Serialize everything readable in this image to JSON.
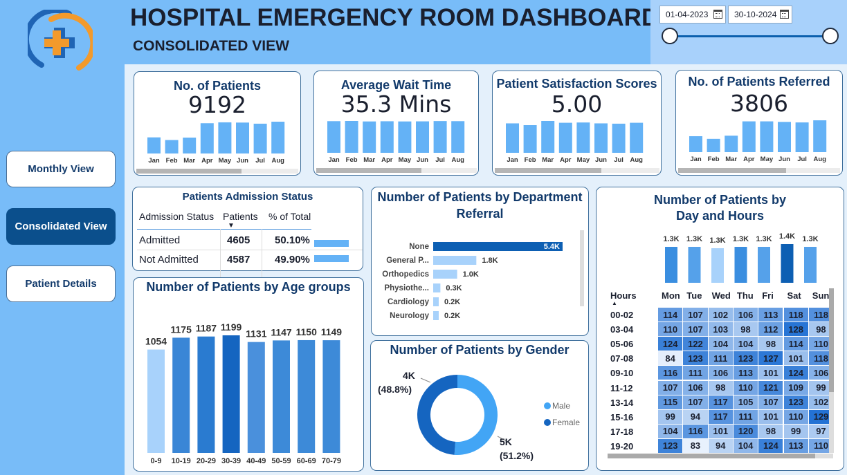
{
  "header": {
    "title": "HOSPITAL EMERGENCY ROOM DASHBOARD",
    "subtitle": "CONSOLIDATED VIEW",
    "date_from": "01-04-2023",
    "date_to": "30-10-2024"
  },
  "nav": [
    {
      "label": "Monthly View",
      "active": false
    },
    {
      "label": "Consolidated View",
      "active": true
    },
    {
      "label": "Patient Details",
      "active": false
    }
  ],
  "colors": {
    "sidebar": "#78bcf8",
    "bar": "#64b2f6",
    "accent_dark": "#0b4f8c",
    "logo_blue": "#1f64b4",
    "logo_orange": "#f39a2b"
  },
  "kpis": [
    {
      "title": "No. of Patients",
      "value": "9192",
      "months": [
        "Jan",
        "Feb",
        "Mar",
        "Apr",
        "May",
        "Jun",
        "Jul",
        "Aug"
      ],
      "values": [
        730,
        610,
        720,
        1370,
        1410,
        1400,
        1350,
        1440
      ]
    },
    {
      "title": "Average Wait Time",
      "value": "35.3 Mins",
      "months": [
        "Jan",
        "Feb",
        "Mar",
        "Apr",
        "May",
        "Jun",
        "Jul",
        "Aug"
      ],
      "values": [
        35.3,
        35.5,
        35.0,
        35.2,
        35.0,
        35.1,
        35.4,
        35.3
      ]
    },
    {
      "title": "Patient Satisfaction Scores",
      "value": "5.00",
      "months": [
        "Jan",
        "Feb",
        "Mar",
        "Apr",
        "May",
        "Jun",
        "Jul",
        "Aug"
      ],
      "values": [
        4.95,
        4.65,
        5.35,
        5.05,
        5.1,
        4.95,
        4.9,
        5.05
      ]
    },
    {
      "title": "No. of Patients Referred",
      "value": "3806",
      "months": [
        "Jan",
        "Feb",
        "Mar",
        "Apr",
        "May",
        "Jun",
        "Jul",
        "Aug"
      ],
      "values": [
        300,
        250,
        310,
        580,
        580,
        570,
        560,
        600
      ]
    }
  ],
  "admission": {
    "title": "Patients Admission Status",
    "headers": [
      "Admission Status",
      "Patients",
      "% of Total"
    ],
    "rows": [
      {
        "status": "Admitted",
        "patients": "4605",
        "pct": "50.10%",
        "pct_value": 50.1
      },
      {
        "status": "Not Admitted",
        "patients": "4587",
        "pct": "49.90%",
        "pct_value": 49.9
      }
    ]
  },
  "department": {
    "title_line1": "Number of Patients by Department",
    "title_line2": "Referral",
    "chart_data": {
      "type": "bar",
      "orientation": "horizontal",
      "categories": [
        "None",
        "General P...",
        "Orthopedics",
        "Physiothe...",
        "Cardiology",
        "Neurology"
      ],
      "values": [
        5400,
        1800,
        1000,
        300,
        200,
        200
      ],
      "labels": [
        "5.4K",
        "1.8K",
        "1.0K",
        "0.3K",
        "0.2K",
        "0.2K"
      ]
    }
  },
  "gender": {
    "title": "Number of Patients by Gender",
    "chart_data": {
      "type": "pie",
      "variant": "donut",
      "categories": [
        "Male",
        "Female"
      ],
      "values": [
        51.2,
        48.8
      ],
      "value_labels": [
        "5K",
        "4K"
      ],
      "pct_labels": [
        "(51.2%)",
        "(48.8%)"
      ],
      "colors": [
        "#42a5f5",
        "#1565c0"
      ]
    }
  },
  "age": {
    "title": "Number of Patients by Age groups",
    "chart_data": {
      "type": "bar",
      "categories": [
        "0-9",
        "10-19",
        "20-29",
        "30-39",
        "40-49",
        "50-59",
        "60-69",
        "70-79"
      ],
      "values": [
        1054,
        1175,
        1187,
        1199,
        1131,
        1147,
        1150,
        1149
      ],
      "colors": [
        "#a8d2fb",
        "#3a86d6",
        "#2a7bd0",
        "#1565c0",
        "#4a90dc",
        "#3d8ad8",
        "#3d8ad8",
        "#3d8ad8"
      ]
    }
  },
  "day_hours": {
    "title_line1": "Number of Patients by",
    "title_line2": "Day and Hours",
    "chart_data": [
      {
        "type": "bar",
        "categories": [
          "Mon",
          "Tue",
          "Wed",
          "Thu",
          "Fri",
          "Sat",
          "Sun"
        ],
        "values": [
          1300,
          1300,
          1250,
          1300,
          1300,
          1400,
          1300
        ],
        "labels": [
          "1.3K",
          "1.3K",
          "1.3K",
          "1.3K",
          "1.3K",
          "1.4K",
          "1.3K"
        ],
        "colors": [
          "#3a8ee0",
          "#55a1ea",
          "#a8d2fb",
          "#3a8ee0",
          "#55a1ea",
          "#0d5fb3",
          "#55a1ea"
        ]
      },
      {
        "type": "heatmap",
        "row_header": "Hours",
        "columns": [
          "Mon",
          "Tue",
          "Wed",
          "Thu",
          "Fri",
          "Sat",
          "Sun"
        ],
        "rows": [
          "00-02",
          "03-04",
          "05-06",
          "07-08",
          "09-10",
          "11-12",
          "13-14",
          "15-16",
          "17-18",
          "19-20"
        ],
        "values": [
          [
            114,
            107,
            102,
            106,
            113,
            118,
            118
          ],
          [
            110,
            107,
            103,
            98,
            112,
            128,
            98
          ],
          [
            124,
            122,
            104,
            104,
            98,
            114,
            110
          ],
          [
            84,
            123,
            111,
            123,
            127,
            101,
            118
          ],
          [
            116,
            111,
            106,
            113,
            101,
            124,
            106
          ],
          [
            107,
            106,
            98,
            110,
            121,
            109,
            99
          ],
          [
            115,
            107,
            117,
            105,
            107,
            123,
            102
          ],
          [
            99,
            94,
            117,
            111,
            101,
            110,
            129
          ],
          [
            104,
            116,
            101,
            120,
            98,
            99,
            97
          ],
          [
            123,
            83,
            94,
            104,
            124,
            113,
            110
          ]
        ]
      }
    ]
  }
}
